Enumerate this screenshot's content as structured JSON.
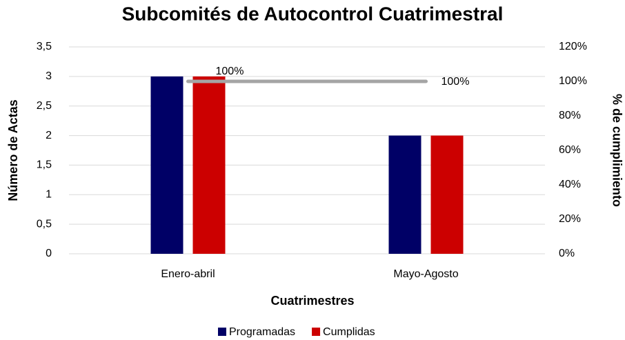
{
  "chart_data": {
    "type": "bar",
    "title": "Subcomités de Autocontrol Cuatrimestral",
    "x_label": "Cuatrimestres",
    "y_label": "Número de Actas",
    "y2_label": "% de cumplimiento",
    "categories": [
      "Enero-abril",
      "Mayo-Agosto"
    ],
    "series": [
      {
        "name": "Programadas",
        "color": "#000066",
        "values": [
          3,
          2
        ]
      },
      {
        "name": "Cumplidas",
        "color": "#cc0000",
        "values": [
          3,
          2
        ]
      },
      {
        "type": "line",
        "axis": "y2",
        "color": "#a5a5a5",
        "values": [
          100,
          100
        ],
        "value_labels": [
          "100%",
          "100%"
        ]
      }
    ],
    "ylim": [
      0,
      3.5
    ],
    "yticks": [
      0,
      {
        "value": 0.5,
        "label": "0,5"
      },
      1,
      {
        "value": 1.5,
        "label": "1,5"
      },
      2,
      {
        "value": 2.5,
        "label": "2,5"
      },
      3,
      {
        "value": 3.5,
        "label": "3,5"
      }
    ],
    "y2lim": [
      0,
      120
    ],
    "y2ticks": [
      {
        "value": 0,
        "label": "0%"
      },
      {
        "value": 20,
        "label": "20%"
      },
      {
        "value": 40,
        "label": "40%"
      },
      {
        "value": 60,
        "label": "60%"
      },
      {
        "value": 80,
        "label": "80%"
      },
      {
        "value": 100,
        "label": "100%"
      },
      {
        "value": 120,
        "label": "120%"
      }
    ],
    "grid": true,
    "legend": "bottom"
  }
}
